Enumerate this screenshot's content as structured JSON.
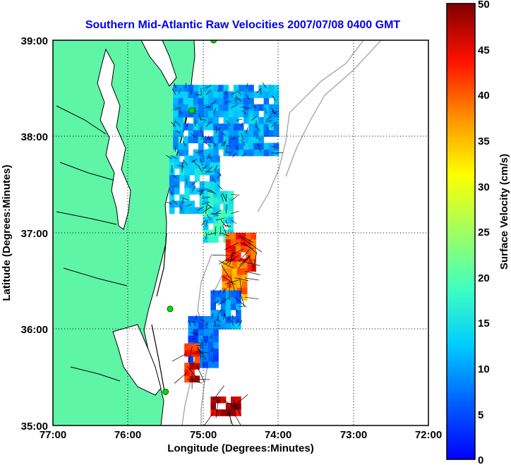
{
  "title": "Southern Mid-Atlantic Raw Velocities 2007/07/08 0400 GMT",
  "colors": {
    "title": "#0000ee",
    "land": "#5ef5a6",
    "coast": "#000000",
    "bathymetry": "#9a9a9a",
    "grid": "#000000",
    "station": "#00e000",
    "arrow": "#000000"
  },
  "axes": {
    "xlabel": "Longitude (Degrees:Minutes)",
    "ylabel": "Latitude (Degrees:Minutes)",
    "x_ticks": [
      "77:00",
      "76:00",
      "75:00",
      "74:00",
      "73:00",
      "72:00"
    ],
    "y_ticks": [
      "39:00",
      "38:00",
      "37:00",
      "36:00",
      "35:00"
    ],
    "xlim": [
      -77.0,
      -72.0
    ],
    "ylim": [
      35.0,
      39.0
    ]
  },
  "colorbar": {
    "label": "Surface Velocity (cm/s)",
    "range": [
      0,
      50
    ],
    "ticks": [
      "50",
      "45",
      "40",
      "35",
      "30",
      "25",
      "20",
      "15",
      "10",
      "5",
      "0"
    ]
  },
  "chart_data": {
    "type": "heatmap",
    "title": "Southern Mid-Atlantic Raw Velocities 2007/07/08 0400 GMT",
    "xlabel": "Longitude (Degrees:Minutes)",
    "ylabel": "Latitude (Degrees:Minutes)",
    "value_label": "Surface Velocity (cm/s)",
    "value_range": [
      0,
      50
    ],
    "stations": [
      {
        "lon": -74.86,
        "lat": 39.0
      },
      {
        "lon": -75.15,
        "lat": 38.27
      },
      {
        "lon": -75.44,
        "lat": 36.21
      },
      {
        "lon": -75.5,
        "lat": 35.35
      }
    ],
    "regions": [
      {
        "lon": [
          -75.4,
          -74.05
        ],
        "lat": [
          37.8,
          38.5
        ],
        "speed": 10
      },
      {
        "lon": [
          -75.45,
          -74.8
        ],
        "lat": [
          37.2,
          37.8
        ],
        "speed": 12
      },
      {
        "lon": [
          -75.0,
          -74.6
        ],
        "lat": [
          36.9,
          37.4
        ],
        "speed": 16
      },
      {
        "lon": [
          -74.7,
          -74.3
        ],
        "lat": [
          36.6,
          37.0
        ],
        "speed": 42
      },
      {
        "lon": [
          -74.75,
          -74.45
        ],
        "lat": [
          36.3,
          36.7
        ],
        "speed": 38
      },
      {
        "lon": [
          -74.9,
          -74.55
        ],
        "lat": [
          36.0,
          36.4
        ],
        "speed": 9
      },
      {
        "lon": [
          -75.2,
          -74.8
        ],
        "lat": [
          35.6,
          36.1
        ],
        "speed": 7
      },
      {
        "lon": [
          -75.25,
          -75.05
        ],
        "lat": [
          35.45,
          35.8
        ],
        "speed": 44
      },
      {
        "lon": [
          -74.9,
          -74.55
        ],
        "lat": [
          35.1,
          35.3
        ],
        "speed": 48
      }
    ]
  }
}
